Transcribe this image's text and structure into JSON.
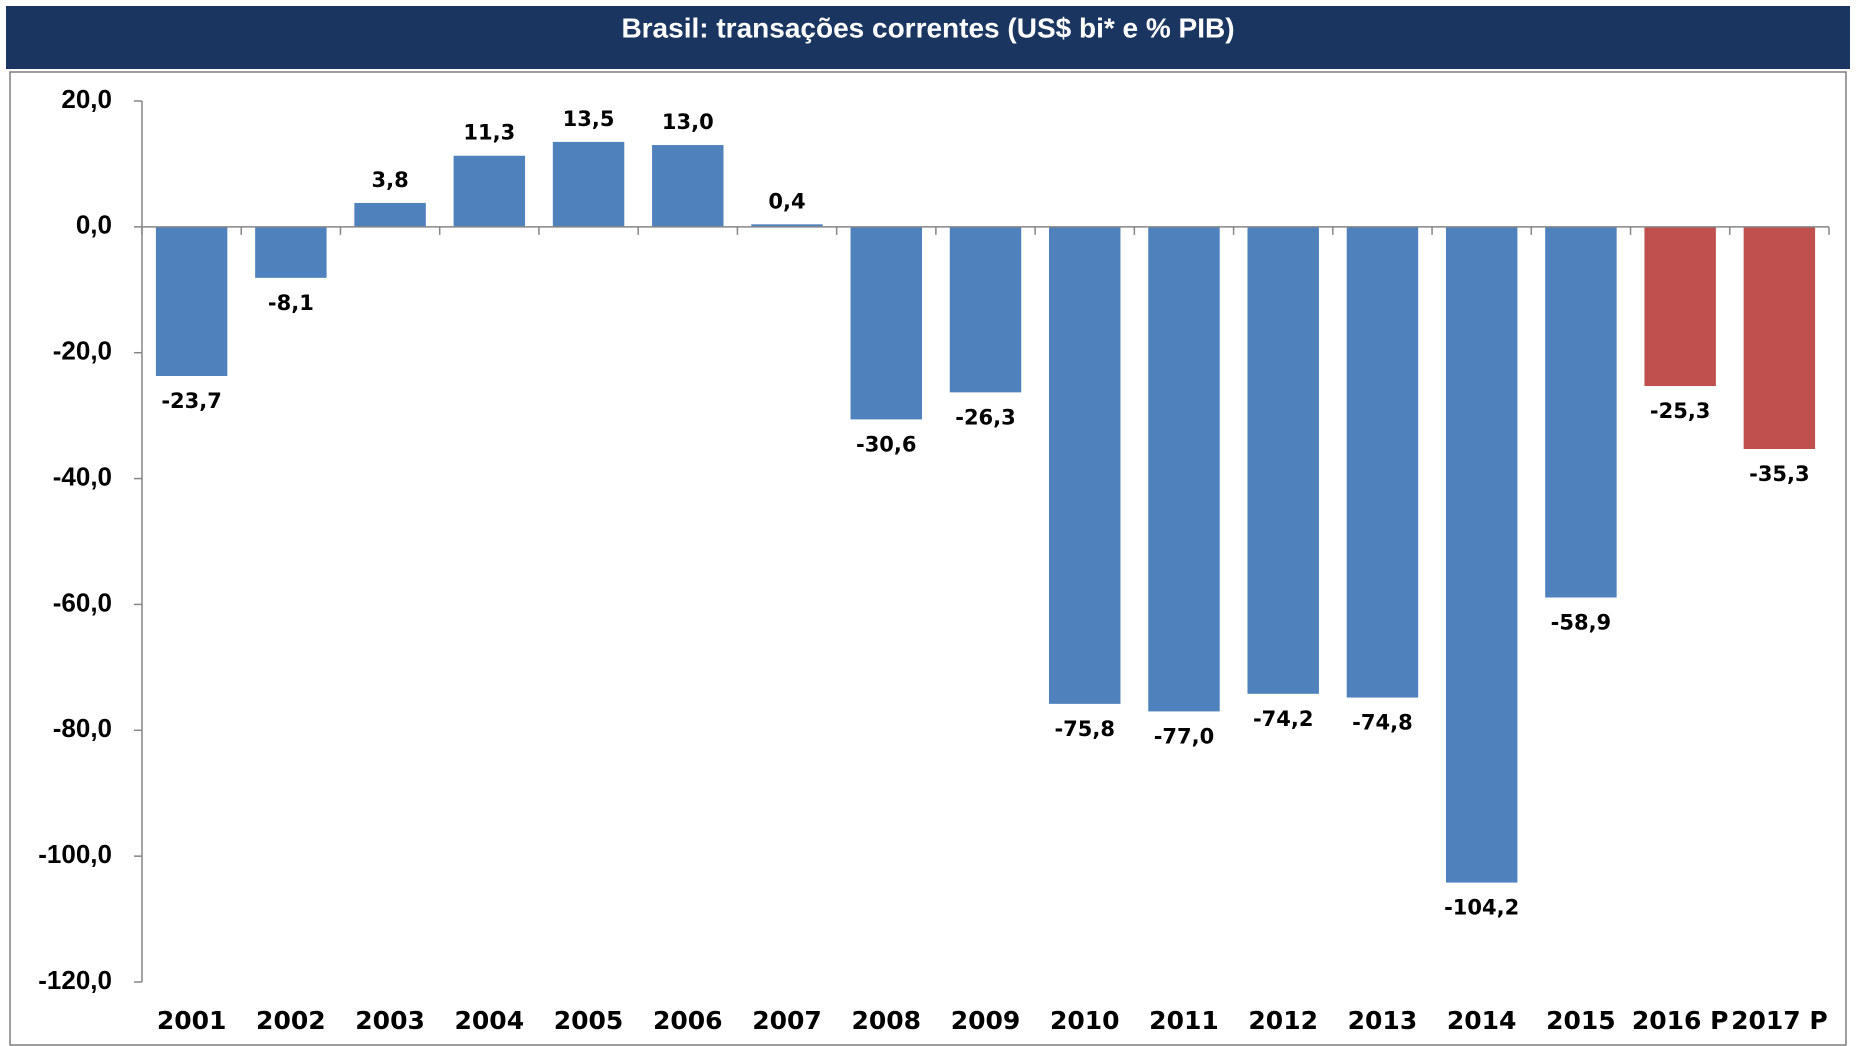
{
  "chart_data": {
    "type": "bar",
    "title": "Brasil: transações correntes (US$ bi* e % PIB)",
    "categories": [
      "2001",
      "2002",
      "2003",
      "2004",
      "2005",
      "2006",
      "2007",
      "2008",
      "2009",
      "2010",
      "2011",
      "2012",
      "2013",
      "2014",
      "2015",
      "2016 P",
      "2017 P"
    ],
    "values": [
      -23.7,
      -8.1,
      3.8,
      11.3,
      13.5,
      13.0,
      0.4,
      -30.6,
      -26.3,
      -75.8,
      -77.0,
      -74.2,
      -74.8,
      -104.2,
      -58.9,
      -25.3,
      -35.3
    ],
    "value_labels": [
      "-23,7",
      "-8,1",
      "3,8",
      "11,3",
      "13,5",
      "13,0",
      "0,4",
      "-30,6",
      "-26,3",
      "-75,8",
      "-77,0",
      "-74,2",
      "-74,8",
      "-104,2",
      "-58,9",
      "-25,3",
      "-35,3"
    ],
    "colors": [
      "#4f81bd",
      "#4f81bd",
      "#4f81bd",
      "#4f81bd",
      "#4f81bd",
      "#4f81bd",
      "#4f81bd",
      "#4f81bd",
      "#4f81bd",
      "#4f81bd",
      "#4f81bd",
      "#4f81bd",
      "#4f81bd",
      "#4f81bd",
      "#4f81bd",
      "#c0504d",
      "#c0504d"
    ],
    "ylim": [
      -120,
      20
    ],
    "yticks": [
      {
        "value": -120,
        "label": "-120,0"
      },
      {
        "value": -100,
        "label": "-100,0"
      },
      {
        "value": -80,
        "label": "-80,0"
      },
      {
        "value": -60,
        "label": "-60,0"
      },
      {
        "value": -40,
        "label": "-40,0"
      },
      {
        "value": -20,
        "label": "-20,0"
      },
      {
        "value": 0,
        "label": "0,0"
      },
      {
        "value": 20,
        "label": "20,0"
      }
    ],
    "grid": false
  }
}
